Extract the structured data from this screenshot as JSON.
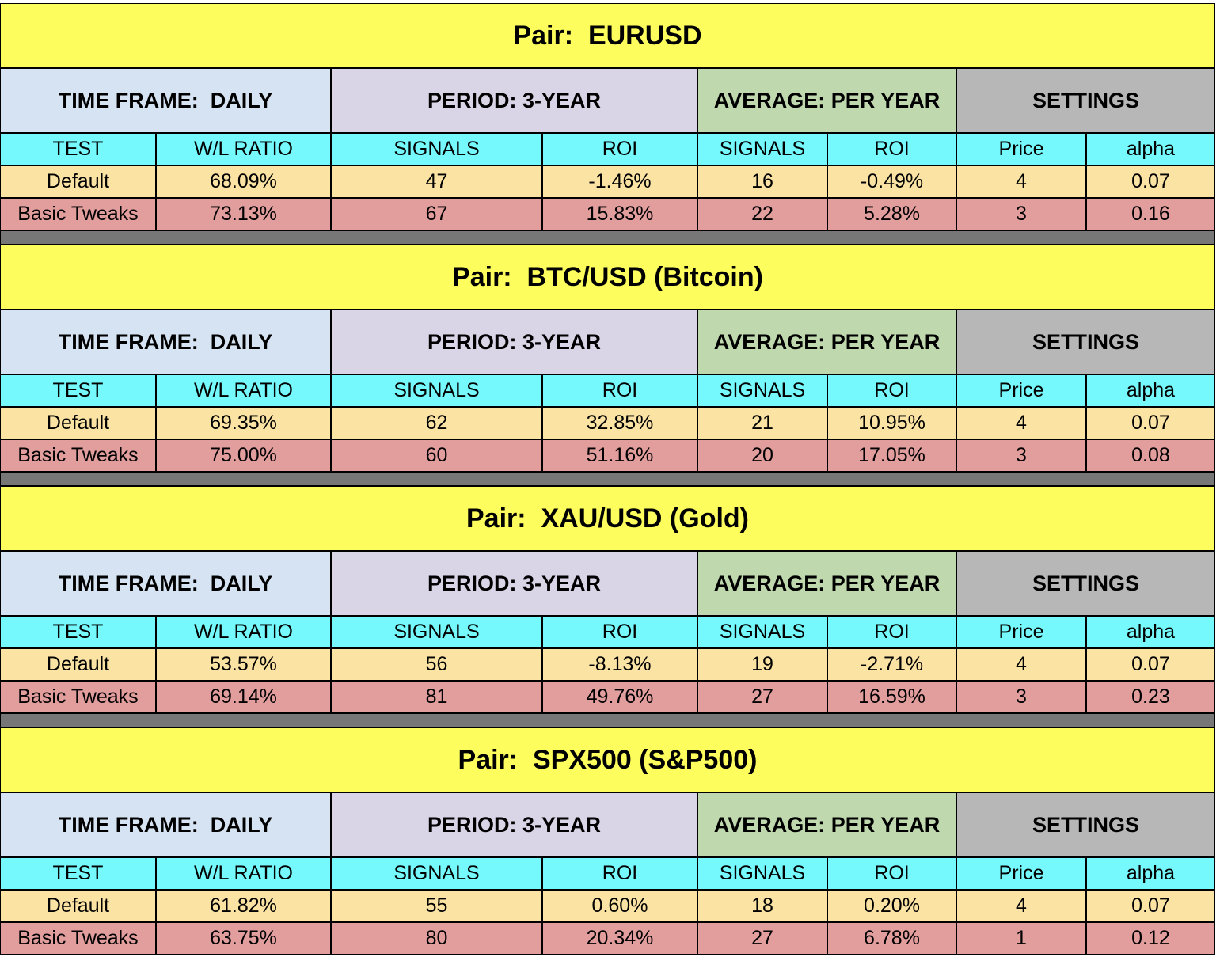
{
  "tables": [
    {
      "title": "Pair:  EURUSD",
      "groups": [
        "TIME FRAME:  DAILY",
        "PERIOD: 3-YEAR",
        "AVERAGE: PER YEAR",
        "SETTINGS"
      ],
      "columns": [
        "TEST",
        "W/L RATIO",
        "SIGNALS",
        "ROI",
        "SIGNALS",
        "ROI",
        "Price",
        "alpha"
      ],
      "rows": [
        [
          "Default",
          "68.09%",
          47,
          "-1.46%",
          16,
          "-0.49%",
          4,
          0.07
        ],
        [
          "Basic Tweaks",
          "73.13%",
          67,
          "15.83%",
          22,
          "5.28%",
          3,
          0.16
        ]
      ]
    },
    {
      "title": "Pair:  BTC/USD (Bitcoin)",
      "groups": [
        "TIME FRAME:  DAILY",
        "PERIOD: 3-YEAR",
        "AVERAGE: PER YEAR",
        "SETTINGS"
      ],
      "columns": [
        "TEST",
        "W/L RATIO",
        "SIGNALS",
        "ROI",
        "SIGNALS",
        "ROI",
        "Price",
        "alpha"
      ],
      "rows": [
        [
          "Default",
          "69.35%",
          62,
          "32.85%",
          21,
          "10.95%",
          4,
          0.07
        ],
        [
          "Basic Tweaks",
          "75.00%",
          60,
          "51.16%",
          20,
          "17.05%",
          3,
          0.08
        ]
      ]
    },
    {
      "title": "Pair:  XAU/USD (Gold)",
      "groups": [
        "TIME FRAME:  DAILY",
        "PERIOD: 3-YEAR",
        "AVERAGE: PER YEAR",
        "SETTINGS"
      ],
      "columns": [
        "TEST",
        "W/L RATIO",
        "SIGNALS",
        "ROI",
        "SIGNALS",
        "ROI",
        "Price",
        "alpha"
      ],
      "rows": [
        [
          "Default",
          "53.57%",
          56,
          "-8.13%",
          19,
          "-2.71%",
          4,
          0.07
        ],
        [
          "Basic Tweaks",
          "69.14%",
          81,
          "49.76%",
          27,
          "16.59%",
          3,
          0.23
        ]
      ]
    },
    {
      "title": "Pair:  SPX500 (S&P500)",
      "groups": [
        "TIME FRAME:  DAILY",
        "PERIOD: 3-YEAR",
        "AVERAGE: PER YEAR",
        "SETTINGS"
      ],
      "columns": [
        "TEST",
        "W/L RATIO",
        "SIGNALS",
        "ROI",
        "SIGNALS",
        "ROI",
        "Price",
        "alpha"
      ],
      "rows": [
        [
          "Default",
          "61.82%",
          55,
          "0.60%",
          18,
          "0.20%",
          4,
          0.07
        ],
        [
          "Basic Tweaks",
          "63.75%",
          80,
          "20.34%",
          27,
          "6.78%",
          1,
          0.12
        ]
      ]
    }
  ]
}
